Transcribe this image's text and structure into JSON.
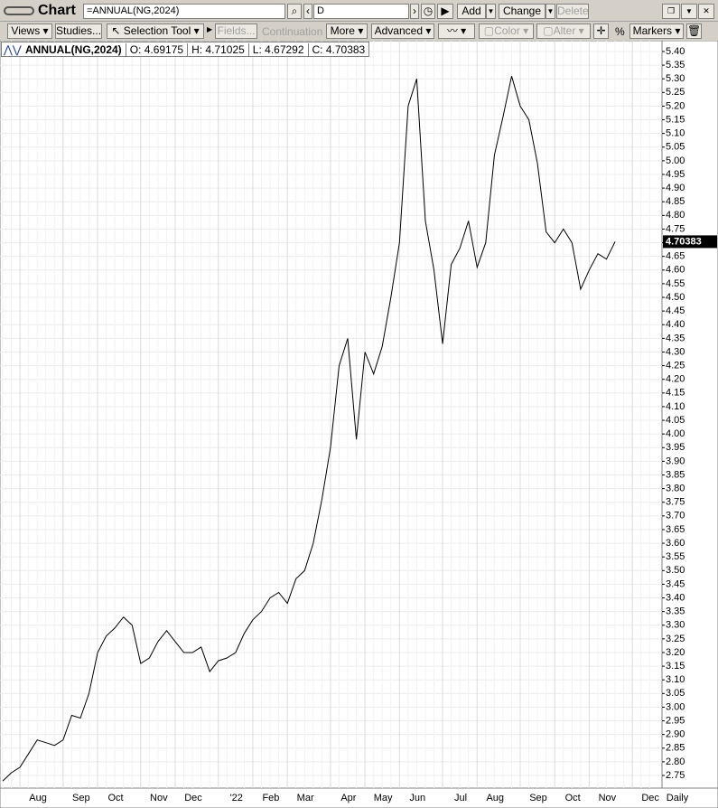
{
  "ui": {
    "title": "Chart",
    "symbol_input": "=ANNUAL(NG,2024)",
    "interval_input": "D",
    "add": "Add",
    "change": "Change",
    "delete": "Delete",
    "toolbar": {
      "views": "Views",
      "studies": "Studies...",
      "selection_tool": "Selection Tool",
      "fields": "Fields...",
      "continuation": "Continuation",
      "more": "More",
      "advanced": "Advanced",
      "color": "Color",
      "alter": "Alter",
      "percent": "%",
      "markers": "Markers"
    },
    "legend": {
      "open": "O: 4.69175",
      "high": "H: 4.71025",
      "low": "L: 4.67292",
      "close": "C: 4.70383"
    },
    "periodicity": "Daily"
  },
  "chart_data": {
    "type": "line",
    "categories": [
      null,
      null,
      "Aug",
      null,
      null,
      null,
      null,
      "Sep",
      null,
      null,
      null,
      "Oct",
      null,
      null,
      null,
      null,
      "Nov",
      null,
      null,
      null,
      "Dec",
      null,
      null,
      null,
      null,
      "'22",
      null,
      null,
      null,
      "Feb",
      null,
      null,
      null,
      "Mar",
      null,
      null,
      null,
      null,
      "Apr",
      null,
      null,
      null,
      "May",
      null,
      null,
      null,
      "Jun",
      null,
      null,
      null,
      null,
      "Jul",
      null,
      null,
      null,
      "Aug",
      null,
      null,
      null,
      null,
      "Sep",
      null,
      null,
      null,
      "Oct",
      null,
      null,
      null,
      "Nov",
      null,
      null,
      null,
      null,
      "Dec",
      null,
      null
    ],
    "series": [
      {
        "name": "ANNUAL(NG,2024)",
        "color": "#000000",
        "values": [
          2.73,
          2.76,
          2.78,
          2.83,
          2.88,
          2.87,
          2.86,
          2.88,
          2.97,
          2.96,
          3.05,
          3.2,
          3.26,
          3.29,
          3.33,
          3.3,
          3.16,
          3.18,
          3.24,
          3.28,
          3.24,
          3.2,
          3.2,
          3.22,
          3.13,
          3.17,
          3.18,
          3.2,
          3.27,
          3.32,
          3.35,
          3.4,
          3.42,
          3.38,
          3.47,
          3.5,
          3.6,
          3.76,
          3.95,
          4.25,
          4.35,
          3.98,
          4.3,
          4.22,
          4.32,
          4.5,
          4.7,
          5.2,
          5.3,
          4.78,
          4.6,
          4.33,
          4.62,
          4.68,
          4.78,
          4.61,
          4.7,
          5.02,
          5.16,
          5.31,
          5.2,
          5.15,
          4.99,
          4.74,
          4.7,
          4.75,
          4.7,
          4.53,
          4.6,
          4.66,
          4.64,
          4.70383,
          null,
          null,
          null,
          null
        ]
      }
    ],
    "ylim": [
      2.71,
      5.43
    ],
    "yticks": [
      2.75,
      {
        "value": 2.8,
        "label": "2.80"
      },
      2.85,
      {
        "value": 2.9,
        "label": "2.90"
      },
      2.95,
      {
        "value": 3,
        "label": "3.00"
      },
      3.05,
      {
        "value": 3.1,
        "label": "3.10"
      },
      3.15,
      {
        "value": 3.2,
        "label": "3.20"
      },
      3.25,
      {
        "value": 3.3,
        "label": "3.30"
      },
      3.35,
      {
        "value": 3.4,
        "label": "3.40"
      },
      3.45,
      {
        "value": 3.5,
        "label": "3.50"
      },
      3.55,
      {
        "value": 3.6,
        "label": "3.60"
      },
      3.65,
      {
        "value": 3.7,
        "label": "3.70"
      },
      3.75,
      {
        "value": 3.8,
        "label": "3.80"
      },
      3.85,
      {
        "value": 3.9,
        "label": "3.90"
      },
      3.95,
      {
        "value": 4,
        "label": "4.00"
      },
      4.05,
      {
        "value": 4.1,
        "label": "4.10"
      },
      4.15,
      {
        "value": 4.2,
        "label": "4.20"
      },
      4.25,
      {
        "value": 4.3,
        "label": "4.30"
      },
      4.35,
      {
        "value": 4.4,
        "label": "4.40"
      },
      4.45,
      {
        "value": 4.5,
        "label": "4.50"
      },
      4.55,
      {
        "value": 4.6,
        "label": "4.60"
      },
      4.65,
      {
        "value": 4.7,
        "label": "4.70"
      },
      4.75,
      {
        "value": 4.8,
        "label": "4.80"
      },
      4.85,
      {
        "value": 4.9,
        "label": "4.90"
      },
      4.95,
      {
        "value": 5,
        "label": "5.00"
      },
      5.05,
      {
        "value": 5.1,
        "label": "5.10"
      },
      5.15,
      {
        "value": 5.2,
        "label": "5.20"
      },
      5.25,
      {
        "value": 5.3,
        "label": "5.30"
      },
      5.35,
      {
        "value": 5.4,
        "label": "5.40"
      }
    ],
    "grid": true
  }
}
